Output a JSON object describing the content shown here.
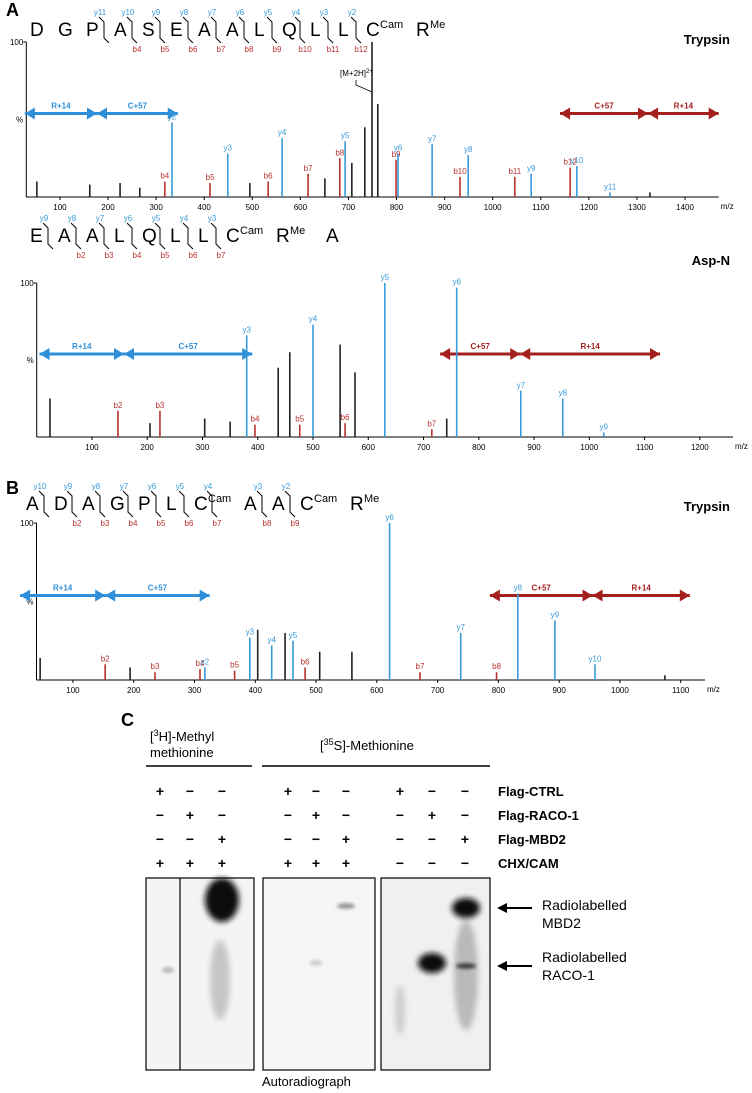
{
  "chart_data": [
    {
      "type": "stick",
      "panel": "A",
      "title": "Trypsin",
      "xlabel": "m/z",
      "ylabel": "%",
      "sequence": {
        "residues": [
          "D",
          "G",
          "P",
          "A",
          "S",
          "E",
          "A",
          "A",
          "L",
          "Q",
          "L",
          "L",
          "C",
          "R"
        ],
        "mods": [
          null,
          null,
          null,
          null,
          null,
          null,
          null,
          null,
          null,
          null,
          null,
          null,
          "Cam",
          "Me"
        ],
        "y_ions": [
          null,
          null,
          "y11",
          "y10",
          "y9",
          "y8",
          "y7",
          "y6",
          "y5",
          "y4",
          "y3",
          "y2",
          null
        ],
        "b_ions": [
          null,
          null,
          null,
          "b4",
          "b5",
          "b6",
          "b7",
          "b8",
          "b9",
          "b10",
          "b11",
          "b12",
          null
        ]
      },
      "x": [
        52,
        162,
        225,
        266,
        318,
        333,
        412,
        449,
        495,
        533,
        562,
        616,
        651,
        682,
        693,
        707,
        734,
        749,
        761,
        799,
        803,
        874,
        932,
        949,
        1046,
        1080,
        1161,
        1175,
        1244,
        1327
      ],
      "values": [
        10,
        8,
        9,
        6,
        10,
        48,
        9,
        28,
        9,
        10,
        38,
        15,
        12,
        25,
        36,
        22,
        45,
        100,
        60,
        24,
        28,
        34,
        13,
        27,
        13,
        15,
        19,
        20,
        3,
        3
      ],
      "labels": [
        null,
        null,
        null,
        null,
        "b4",
        "y2",
        "b5",
        "y3",
        null,
        "b6",
        "y4",
        "b7",
        null,
        "b8",
        "y5",
        null,
        null,
        null,
        null,
        "b9",
        "y6",
        "y7",
        "b10",
        "y8",
        "b11",
        "y9",
        "b12",
        "y10",
        "y11",
        null
      ],
      "colors": [
        "#222",
        "#222",
        "#222",
        "#222",
        "#b8312f",
        "#3a9ad9",
        "#b8312f",
        "#3a9ad9",
        "#222",
        "#b8312f",
        "#3a9ad9",
        "#b8312f",
        "#222",
        "#b8312f",
        "#3a9ad9",
        "#222",
        "#222",
        "#222",
        "#222",
        "#b8312f",
        "#3a9ad9",
        "#3a9ad9",
        "#b8312f",
        "#3a9ad9",
        "#b8312f",
        "#3a9ad9",
        "#b8312f",
        "#3a9ad9",
        "#3a9ad9",
        "#222"
      ],
      "annotations": [
        {
          "text": "[M+2H]",
          "sup": "2+",
          "x": 749
        }
      ],
      "spans": [
        {
          "label": "R+14",
          "from": 27,
          "to": 177,
          "color": "#2f8fd8"
        },
        {
          "label": "C+57",
          "from": 177,
          "to": 345,
          "color": "#2f8fd8"
        },
        {
          "label": "C+57",
          "from": 1140,
          "to": 1323,
          "color": "#a3201d"
        },
        {
          "label": "R+14",
          "from": 1323,
          "to": 1470,
          "color": "#a3201d"
        }
      ],
      "xlim": [
        30,
        1470
      ],
      "xticks": [
        100,
        200,
        300,
        400,
        500,
        600,
        700,
        800,
        900,
        1000,
        1100,
        1200,
        1300,
        1400
      ],
      "ylim": [
        0,
        100
      ],
      "yticks": [
        100
      ]
    },
    {
      "type": "stick",
      "title": "Asp-N",
      "xlabel": "m/z",
      "ylabel": "%",
      "sequence": {
        "residues": [
          "E",
          "A",
          "A",
          "L",
          "Q",
          "L",
          "L",
          "C",
          "R",
          "A"
        ],
        "mods": [
          null,
          null,
          null,
          null,
          null,
          null,
          null,
          "Cam",
          "Me",
          null
        ],
        "y_ions": [
          "y9",
          "y8",
          "y7",
          "y6",
          "y5",
          "y4",
          "y3",
          null,
          null
        ],
        "b_ions": [
          null,
          "b2",
          "b3",
          "b4",
          "b5",
          "b6",
          "b7",
          null,
          null
        ]
      },
      "x": [
        24,
        147,
        205,
        223,
        304,
        350,
        380,
        395,
        437,
        458,
        476,
        500,
        549,
        558,
        576,
        630,
        715,
        742,
        760,
        876,
        952,
        1026
      ],
      "values": [
        25,
        17,
        9,
        17,
        12,
        10,
        66,
        8,
        45,
        55,
        8,
        73,
        60,
        9,
        42,
        100,
        5,
        12,
        97,
        30,
        25,
        3
      ],
      "labels": [
        null,
        "b2",
        null,
        "b3",
        null,
        null,
        "y3",
        "b4",
        null,
        null,
        "b5",
        "y4",
        null,
        "b6",
        null,
        "y5",
        "b7",
        null,
        "y6",
        "y7",
        "y8",
        "y9"
      ],
      "colors": [
        "#222",
        "#b8312f",
        "#222",
        "#b8312f",
        "#222",
        "#222",
        "#3a9ad9",
        "#b8312f",
        "#222",
        "#222",
        "#b8312f",
        "#3a9ad9",
        "#222",
        "#b8312f",
        "#222",
        "#3a9ad9",
        "#b8312f",
        "#222",
        "#3a9ad9",
        "#3a9ad9",
        "#3a9ad9",
        "#3a9ad9"
      ],
      "spans": [
        {
          "label": "R+14",
          "from": 5,
          "to": 158,
          "color": "#2f8fd8"
        },
        {
          "label": "C+57",
          "from": 158,
          "to": 390,
          "color": "#2f8fd8"
        },
        {
          "label": "C+57",
          "from": 730,
          "to": 875,
          "color": "#a3201d"
        },
        {
          "label": "R+14",
          "from": 875,
          "to": 1128,
          "color": "#a3201d"
        }
      ],
      "xlim": [
        0,
        1260
      ],
      "xticks": [
        100,
        200,
        300,
        400,
        500,
        600,
        700,
        800,
        900,
        1000,
        1100,
        1200
      ],
      "ylim": [
        0,
        100
      ],
      "yticks": [
        100
      ]
    },
    {
      "type": "stick",
      "panel": "B",
      "title": "Trypsin",
      "xlabel": "m/z",
      "ylabel": "%",
      "sequence": {
        "residues": [
          "A",
          "D",
          "A",
          "G",
          "P",
          "L",
          "C",
          "A",
          "A",
          "C",
          "R"
        ],
        "mods": [
          null,
          null,
          null,
          null,
          null,
          null,
          "Cam",
          null,
          null,
          "Cam",
          "Me"
        ],
        "y_ions": [
          "y10",
          "y9",
          "y8",
          "y7",
          "y6",
          "y5",
          "y4",
          "y3",
          "y2",
          null
        ],
        "b_ions": [
          null,
          "b2",
          "b3",
          "b4",
          "b5",
          "b6",
          "b7",
          "b8",
          "b9",
          null
        ]
      },
      "x": [
        46,
        153,
        194,
        235,
        309,
        317,
        366,
        391,
        404,
        427,
        449,
        462,
        482,
        506,
        559,
        621,
        671,
        738,
        797,
        832,
        893,
        959,
        1074
      ],
      "values": [
        14,
        10,
        8,
        5,
        7,
        8,
        6,
        27,
        32,
        22,
        30,
        25,
        8,
        18,
        18,
        100,
        5,
        30,
        5,
        55,
        38,
        10,
        3
      ],
      "labels": [
        null,
        "b2",
        null,
        "b3",
        "b4",
        "y2",
        "b5",
        "y3",
        null,
        "y4",
        null,
        "y5",
        "b6",
        null,
        null,
        "y6",
        "b7",
        "y7",
        "b8",
        "y8",
        "y9",
        "y10",
        null
      ],
      "colors": [
        "#222",
        "#b8312f",
        "#222",
        "#b8312f",
        "#b8312f",
        "#3a9ad9",
        "#b8312f",
        "#3a9ad9",
        "#222",
        "#3a9ad9",
        "#222",
        "#3a9ad9",
        "#b8312f",
        "#222",
        "#222",
        "#3a9ad9",
        "#b8312f",
        "#3a9ad9",
        "#b8312f",
        "#3a9ad9",
        "#3a9ad9",
        "#3a9ad9",
        "#222"
      ],
      "spans": [
        {
          "label": "R+14",
          "from": 13,
          "to": 153,
          "color": "#2f8fd8"
        },
        {
          "label": "C+57",
          "from": 153,
          "to": 325,
          "color": "#2f8fd8"
        },
        {
          "label": "C+57",
          "from": 786,
          "to": 955,
          "color": "#a3201d"
        },
        {
          "label": "R+14",
          "from": 955,
          "to": 1115,
          "color": "#a3201d"
        }
      ],
      "xlim": [
        40,
        1140
      ],
      "xticks": [
        100,
        200,
        300,
        400,
        500,
        600,
        700,
        800,
        900,
        1000,
        1100
      ],
      "ylim": [
        0,
        100
      ],
      "yticks": [
        100
      ]
    }
  ],
  "panel_c": {
    "label": "C",
    "header_1": {
      "pre": "[",
      "sup": "3",
      "post": "H]-Methyl",
      "line2": "methionine"
    },
    "header_2": {
      "pre": "[",
      "sup": "35",
      "post": "S]-Methionine"
    },
    "rows": [
      {
        "label": "Flag-CTRL",
        "signs": [
          "+",
          "−",
          "−",
          "+",
          "−",
          "−",
          "+",
          "−",
          "−"
        ]
      },
      {
        "label": "Flag-RACO-1",
        "signs": [
          "−",
          "+",
          "−",
          "−",
          "+",
          "−",
          "−",
          "+",
          "−"
        ]
      },
      {
        "label": "Flag-MBD2",
        "signs": [
          "−",
          "−",
          "+",
          "−",
          "−",
          "+",
          "−",
          "−",
          "+"
        ]
      },
      {
        "label": "CHX/CAM",
        "signs": [
          "+",
          "+",
          "+",
          "+",
          "+",
          "+",
          "−",
          "−",
          "−"
        ]
      }
    ],
    "bands": [
      {
        "line1": "Radiolabelled",
        "line2": "MBD2"
      },
      {
        "line1": "Radiolabelled",
        "line2": "RACO-1"
      }
    ],
    "footer": "Autoradiograph"
  }
}
